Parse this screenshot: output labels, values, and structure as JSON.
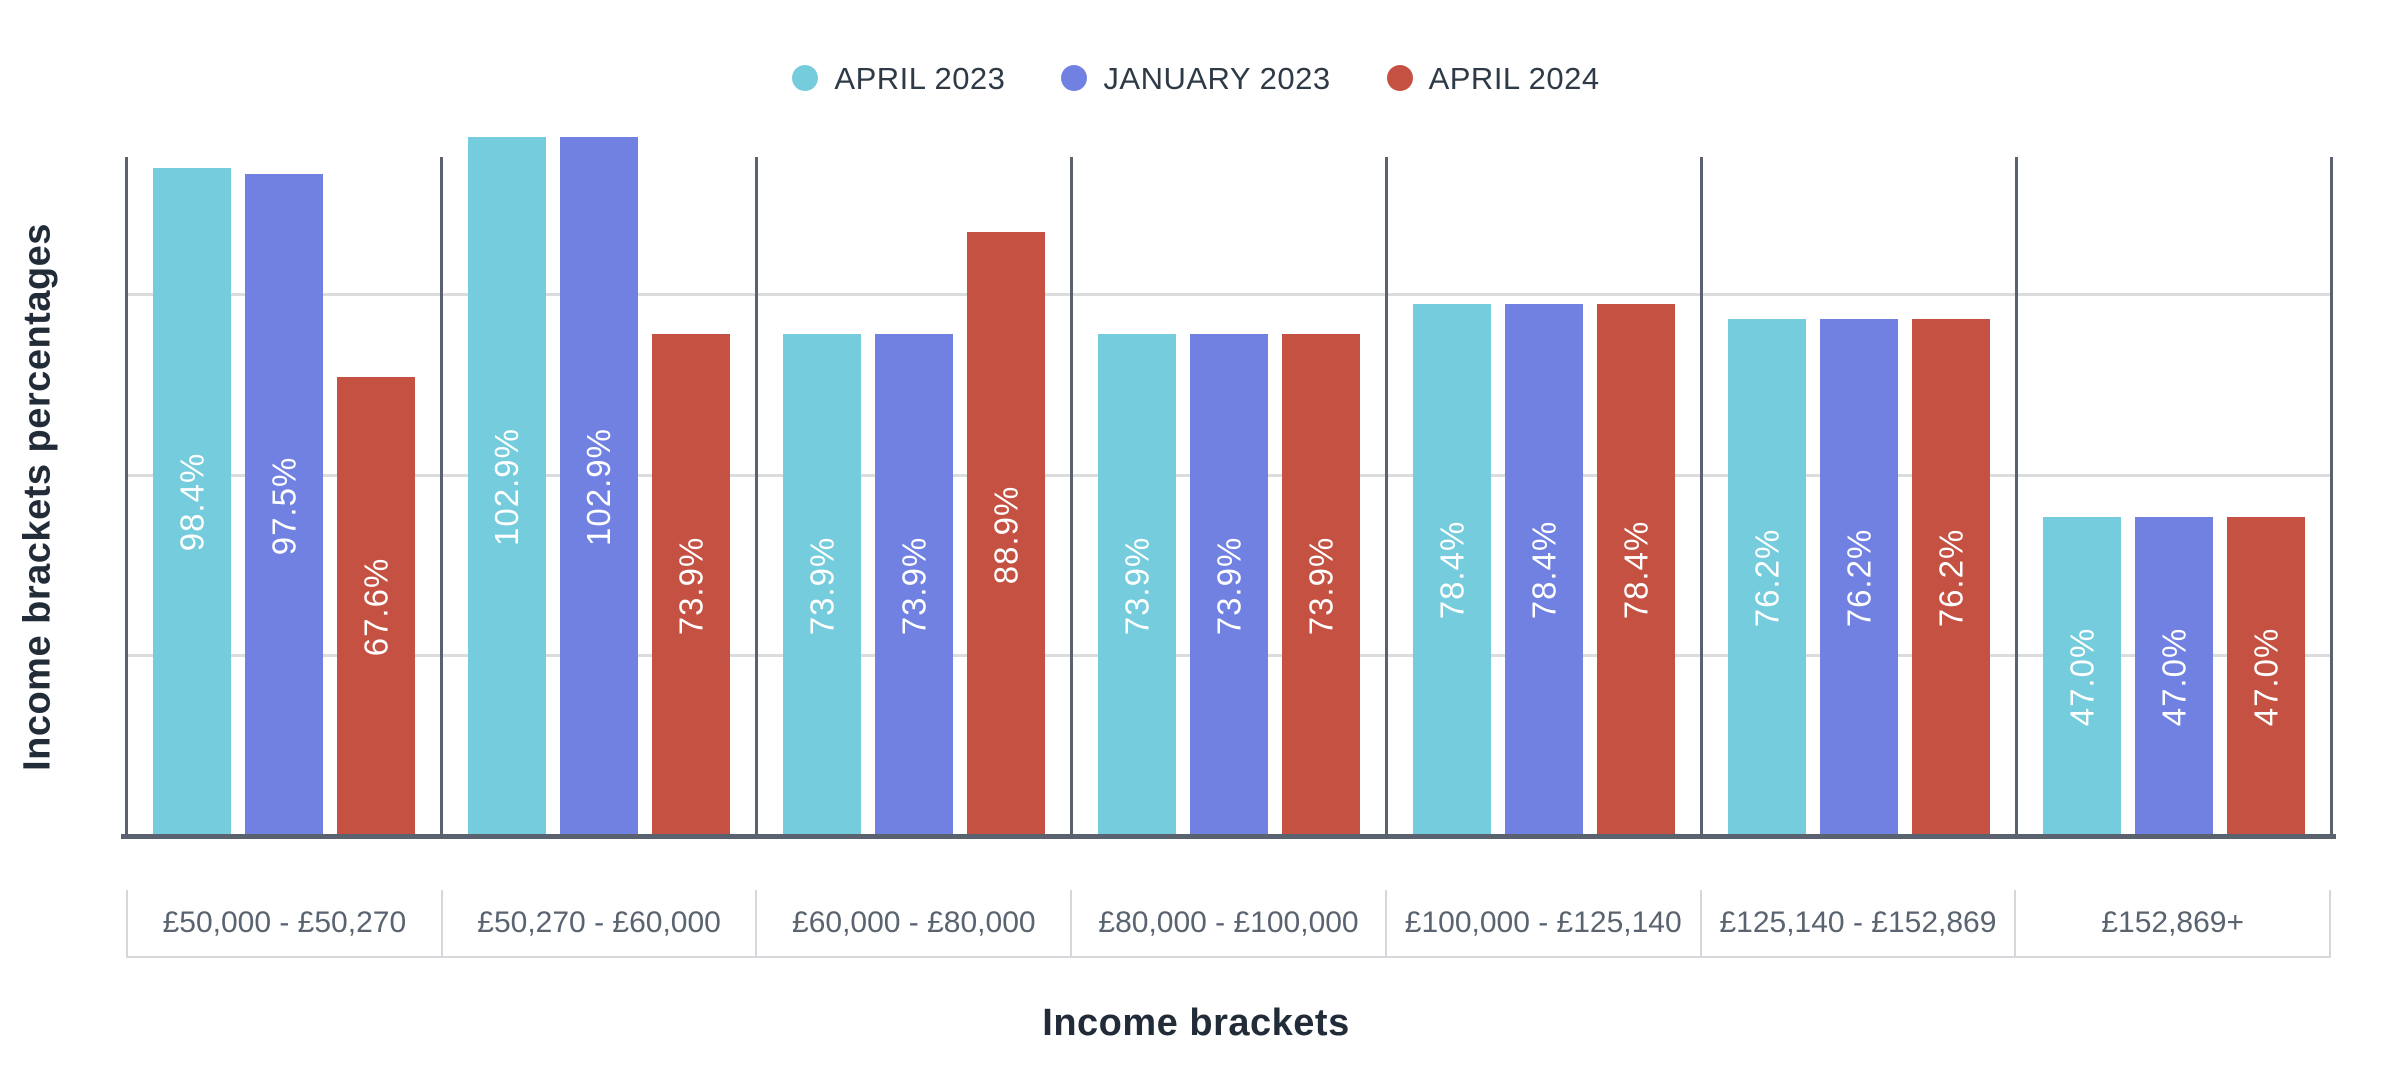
{
  "colors": {
    "background": "#FFFFFF",
    "axis_line": "#59626E",
    "gridline": "#DBDCDE",
    "label_cell_border": "#D5D7DA",
    "label_text": "#5A6370",
    "title_text": "#222B38",
    "legend_text": "#2F3A47",
    "bar_label_text": "#FFFFFF",
    "series_teal": "#74CCDC",
    "series_blue": "#7181E2",
    "series_red": "#C45141"
  },
  "chart_data": {
    "type": "bar",
    "title": "",
    "xlabel": "Income brackets",
    "ylabel": "Income brackets percentages",
    "ylim": [
      0,
      103
    ],
    "grid": "horizontal gridlines, no y tick labels; dark vertical separator lines between category groups",
    "legend_position": "top-center",
    "bar_label_format": "one decimal + % sign, white, rotated 90° CCW, centered inside bar",
    "categories": [
      "£50,000 - £50,270",
      "£50,270 - £60,000",
      "£60,000 - £80,000",
      "£80,000 - £100,000",
      "£100,000 - £125,140",
      "£125,140 - £152,869",
      "£152,869+"
    ],
    "series": [
      {
        "name": "APRIL 2023",
        "color": "#74CCDC",
        "values": [
          98.4,
          102.9,
          73.9,
          73.9,
          78.4,
          76.2,
          47.0
        ]
      },
      {
        "name": "JANUARY 2023",
        "color": "#7181E2",
        "values": [
          97.5,
          102.9,
          73.9,
          73.9,
          78.4,
          76.2,
          47.0
        ]
      },
      {
        "name": "APRIL 2024",
        "color": "#C45141",
        "values": [
          67.6,
          73.9,
          88.9,
          73.9,
          78.4,
          76.2,
          47.0
        ]
      }
    ]
  }
}
